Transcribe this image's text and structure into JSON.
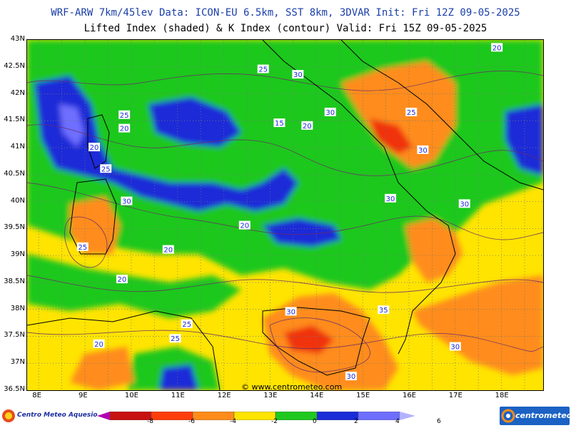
{
  "header": {
    "line1": "WRF-ARW 7km/45lev  Data: ICON-EU 6.5km, SST 8km, 3DVAR  Init: Fri 12Z 09-05-2025",
    "line2": "Lifted Index (shaded) & K Index (contour)  Valid: Fri 15Z 09-05-2025"
  },
  "axes": {
    "lat_labels": [
      "43N",
      "42.5N",
      "42N",
      "41.5N",
      "41N",
      "40.5N",
      "40N",
      "39.5N",
      "39N",
      "38.5N",
      "38N",
      "37.5N",
      "37N",
      "36.5N"
    ],
    "lon_labels": [
      "8E",
      "9E",
      "10E",
      "11E",
      "12E",
      "13E",
      "14E",
      "15E",
      "16E",
      "17E",
      "18E"
    ]
  },
  "contour_labels": [
    {
      "text": "20",
      "lon": 17.9,
      "lat": 42.85
    },
    {
      "text": "25",
      "lon": 12.85,
      "lat": 42.45
    },
    {
      "text": "30",
      "lon": 13.6,
      "lat": 42.35
    },
    {
      "text": "25",
      "lon": 9.85,
      "lat": 41.6
    },
    {
      "text": "20",
      "lon": 9.85,
      "lat": 41.35
    },
    {
      "text": "15",
      "lon": 13.2,
      "lat": 41.45
    },
    {
      "text": "20",
      "lon": 13.8,
      "lat": 41.4
    },
    {
      "text": "30",
      "lon": 14.3,
      "lat": 41.65
    },
    {
      "text": "25",
      "lon": 16.05,
      "lat": 41.65
    },
    {
      "text": "20",
      "lon": 9.2,
      "lat": 41.0
    },
    {
      "text": "30",
      "lon": 16.3,
      "lat": 40.95
    },
    {
      "text": "25",
      "lon": 9.45,
      "lat": 40.6
    },
    {
      "text": "30",
      "lon": 15.6,
      "lat": 40.05
    },
    {
      "text": "30",
      "lon": 9.9,
      "lat": 40.0
    },
    {
      "text": "30",
      "lon": 17.2,
      "lat": 39.95
    },
    {
      "text": "20",
      "lon": 12.45,
      "lat": 39.55
    },
    {
      "text": "25",
      "lon": 8.95,
      "lat": 39.15
    },
    {
      "text": "20",
      "lon": 10.8,
      "lat": 39.1
    },
    {
      "text": "20",
      "lon": 9.8,
      "lat": 38.55
    },
    {
      "text": "30",
      "lon": 13.45,
      "lat": 37.95
    },
    {
      "text": "35",
      "lon": 15.45,
      "lat": 37.98
    },
    {
      "text": "25",
      "lon": 11.2,
      "lat": 37.72
    },
    {
      "text": "25",
      "lon": 10.95,
      "lat": 37.45
    },
    {
      "text": "20",
      "lon": 9.3,
      "lat": 37.35
    },
    {
      "text": "30",
      "lon": 17.0,
      "lat": 37.3
    },
    {
      "text": "30",
      "lon": 14.75,
      "lat": 36.75
    }
  ],
  "watermark": "© www.centrometeo.com",
  "legend": {
    "colors": [
      "#b200b2",
      "#c81212",
      "#ff3d0a",
      "#ff8c1a",
      "#ffe400",
      "#1fc81f",
      "#1a2bd8",
      "#6e6eff",
      "#b2b2ff"
    ],
    "labels": [
      "-8",
      "-6",
      "-4",
      "-2",
      "0",
      "2",
      "4",
      "6"
    ]
  },
  "logos": {
    "left": "Centro Meteo Aquesio",
    "right": "centrometeo"
  },
  "field_colors": {
    "yellow": "#ffe400",
    "orange": "#ff8c1a",
    "red": "#f0320a",
    "green": "#1fc81f",
    "blue": "#1a2bd8",
    "lightblue": "#6e6eff"
  }
}
